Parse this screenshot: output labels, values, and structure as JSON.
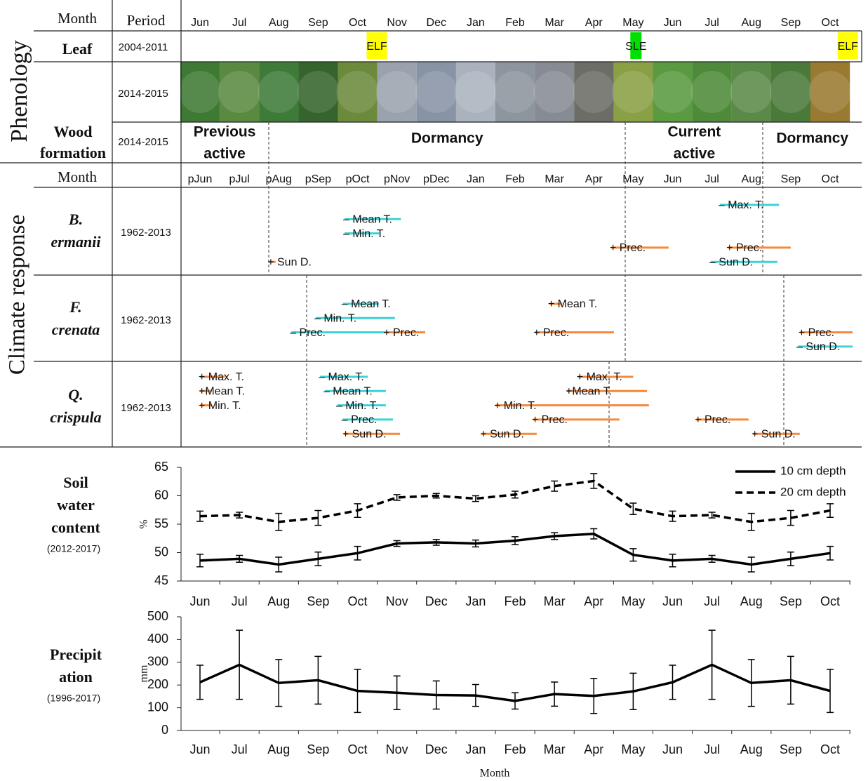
{
  "panel": {
    "header": {
      "month_label": "Month",
      "period_label": "Period",
      "months": [
        "Jun",
        "Jul",
        "Aug",
        "Sep",
        "Oct",
        "Nov",
        "Dec",
        "Jan",
        "Feb",
        "Mar",
        "Apr",
        "May",
        "Jun",
        "Jul",
        "Aug",
        "Sep",
        "Oct"
      ]
    },
    "phenology": {
      "label": "Phenology",
      "leaf": {
        "label": "Leaf",
        "period": "2004-2011",
        "events": [
          {
            "label": "ELF",
            "position": 4.49,
            "color": "#ffff00"
          },
          {
            "label": "SLE",
            "position": 11.07,
            "color": "#00e000"
          },
          {
            "label": "ELF",
            "position": 16.45,
            "color": "#ffff00"
          }
        ]
      },
      "photos": {
        "period": "2014-2015"
      }
    },
    "wood": {
      "label_lines": [
        "Wood",
        "formation"
      ],
      "period": "2014-2015",
      "phases": [
        {
          "lines": [
            "Previous",
            "active"
          ],
          "from": -0.5,
          "to": 1.75
        },
        {
          "lines": [
            "Dormancy"
          ],
          "from": 1.75,
          "to": 10.8
        },
        {
          "lines": [
            "Current",
            "active"
          ],
          "from": 10.8,
          "to": 14.3
        },
        {
          "lines": [
            "Dormancy"
          ],
          "from": 14.3,
          "to": 16.8
        }
      ]
    },
    "climate": {
      "label": "Climate response",
      "month_label": "Month",
      "months": [
        "pJun",
        "pJul",
        "pAug",
        "pSep",
        "pOct",
        "pNov",
        "pDec",
        "Jan",
        "Feb",
        "Mar",
        "Apr",
        "May",
        "Jun",
        "Jul",
        "Aug",
        "Sep",
        "Oct"
      ],
      "species": [
        {
          "name_lines": [
            "B.",
            "ermanii"
          ],
          "period": "1962-2013",
          "bars": [
            {
              "label": "– Max. T.",
              "color": "#3dd2d8",
              "row": 0,
              "from": 13.2,
              "to": 14.7
            },
            {
              "label": "– Mean T.",
              "color": "#3dd2d8",
              "row": 1,
              "from": 3.67,
              "to": 5.1
            },
            {
              "label": "– Min. T.",
              "color": "#3dd2d8",
              "row": 2,
              "from": 3.67,
              "to": 4.55
            },
            {
              "label": "+ Prec.",
              "color": "#f58a3c",
              "row": 3,
              "from": 10.44,
              "to": 11.9
            },
            {
              "label": "+ Prec.",
              "color": "#f58a3c",
              "row": 3,
              "from": 13.4,
              "to": 15.0
            },
            {
              "label": "– Sun D.",
              "color": "#3dd2d8",
              "row": 4,
              "from": 12.97,
              "to": 14.66
            },
            {
              "label": "+ Sun D.",
              "color": "#f58a3c",
              "row": 4,
              "from": 1.75,
              "to": 1.92
            }
          ]
        },
        {
          "name_lines": [
            "F.",
            "crenata"
          ],
          "period": "1962-2013",
          "bars": [
            {
              "label": "– Mean T.",
              "color": "#3dd2d8",
              "row": 0,
              "from": 3.63,
              "to": 4.54
            },
            {
              "label": "+ Mean T.",
              "color": "#f58a3c",
              "row": 0,
              "from": 8.87,
              "to": 9.2
            },
            {
              "label": "– Min. T.",
              "color": "#3dd2d8",
              "row": 1,
              "from": 2.94,
              "to": 4.95
            },
            {
              "label": "– Prec.",
              "color": "#3dd2d8",
              "row": 2,
              "from": 2.32,
              "to": 4.69
            },
            {
              "label": "+ Prec.",
              "color": "#f58a3c",
              "row": 2,
              "from": 4.69,
              "to": 5.72
            },
            {
              "label": "+ Prec.",
              "color": "#f58a3c",
              "row": 2,
              "from": 8.5,
              "to": 10.51
            },
            {
              "label": "+ Prec.",
              "color": "#f58a3c",
              "row": 2,
              "from": 15.23,
              "to": 16.57
            },
            {
              "label": "– Sun D.",
              "color": "#3dd2d8",
              "row": 3,
              "from": 15.18,
              "to": 16.57
            }
          ]
        },
        {
          "name_lines": [
            "Q.",
            "crispula"
          ],
          "period": "1962-2013",
          "bars": [
            {
              "label": "+ Max. T.",
              "color": "#f58a3c",
              "row": 0,
              "from": 0.0,
              "to": 0.63
            },
            {
              "label": "+Mean T.",
              "color": "#f58a3c",
              "row": 1,
              "from": 0.0,
              "to": 0.3
            },
            {
              "label": "+ Min. T.",
              "color": "#f58a3c",
              "row": 2,
              "from": 0.0,
              "to": 0.3
            },
            {
              "label": "– Max. T.",
              "color": "#3dd2d8",
              "row": 0,
              "from": 3.05,
              "to": 4.26
            },
            {
              "label": "– Mean T.",
              "color": "#3dd2d8",
              "row": 1,
              "from": 3.17,
              "to": 4.72
            },
            {
              "label": "– Min. T.",
              "color": "#3dd2d8",
              "row": 2,
              "from": 3.49,
              "to": 4.72
            },
            {
              "label": "– Prec.",
              "color": "#3dd2d8",
              "row": 3,
              "from": 3.63,
              "to": 4.9
            },
            {
              "label": "+ Sun D.",
              "color": "#f58a3c",
              "row": 4,
              "from": 3.65,
              "to": 5.08
            },
            {
              "label": "+ Sun D.",
              "color": "#f58a3c",
              "row": 4,
              "from": 7.15,
              "to": 8.55
            },
            {
              "label": "+ Max. T.",
              "color": "#f58a3c",
              "row": 0,
              "from": 9.6,
              "to": 11.0
            },
            {
              "label": "+Mean T.",
              "color": "#f58a3c",
              "row": 1,
              "from": 9.32,
              "to": 11.35
            },
            {
              "label": "+ Min. T.",
              "color": "#f58a3c",
              "row": 2,
              "from": 7.5,
              "to": 11.4
            },
            {
              "label": "+ Prec.",
              "color": "#f58a3c",
              "row": 3,
              "from": 8.46,
              "to": 10.65
            },
            {
              "label": "+ Prec.",
              "color": "#f58a3c",
              "row": 3,
              "from": 12.6,
              "to": 13.93
            },
            {
              "label": "+ Sun D.",
              "color": "#f58a3c",
              "row": 4,
              "from": 14.04,
              "to": 15.23
            }
          ]
        }
      ]
    }
  },
  "chart_data": [
    {
      "type": "line",
      "title_lines": [
        "Soil",
        "water",
        "content"
      ],
      "subtitle": "(2012-2017)",
      "ylabel": "%",
      "categories": [
        "Jun",
        "Jul",
        "Aug",
        "Sep",
        "Oct",
        "Nov",
        "Dec",
        "Jan",
        "Feb",
        "Mar",
        "Apr",
        "May",
        "Jun",
        "Jul",
        "Aug",
        "Sep",
        "Oct"
      ],
      "ylim": [
        45,
        65
      ],
      "yticks": [
        45,
        50,
        55,
        60,
        65
      ],
      "legend": "upper right",
      "series": [
        {
          "name": "10 cm depth",
          "color": "#000000",
          "dashed": false,
          "values": [
            48.6,
            48.9,
            47.9,
            48.9,
            49.9,
            51.6,
            51.8,
            51.6,
            52.1,
            52.9,
            53.3,
            49.6,
            48.6,
            48.9,
            47.9,
            48.9,
            49.9
          ],
          "errors": [
            1.1,
            0.6,
            1.3,
            1.2,
            1.2,
            0.5,
            0.5,
            0.6,
            0.7,
            0.6,
            0.9,
            1.1,
            1.1,
            0.6,
            1.3,
            1.2,
            1.2
          ]
        },
        {
          "name": "20 cm depth",
          "color": "#000000",
          "dashed": true,
          "values": [
            56.4,
            56.6,
            55.4,
            56.1,
            57.4,
            59.7,
            60.0,
            59.5,
            60.2,
            61.7,
            62.6,
            57.7,
            56.4,
            56.6,
            55.4,
            56.1,
            57.4
          ],
          "errors": [
            0.9,
            0.5,
            1.5,
            1.3,
            1.2,
            0.5,
            0.4,
            0.5,
            0.6,
            0.9,
            1.3,
            1.0,
            0.9,
            0.5,
            1.5,
            1.3,
            1.2
          ]
        }
      ]
    },
    {
      "type": "line",
      "title_lines": [
        "Precipit",
        "ation"
      ],
      "subtitle": "(1996-2017)",
      "ylabel": "mm",
      "xlabel": "Month",
      "categories": [
        "Jun",
        "Jul",
        "Aug",
        "Sep",
        "Oct",
        "Nov",
        "Dec",
        "Jan",
        "Feb",
        "Mar",
        "Apr",
        "May",
        "Jun",
        "Jul",
        "Aug",
        "Sep",
        "Oct"
      ],
      "ylim": [
        0,
        500
      ],
      "yticks": [
        0,
        100,
        200,
        300,
        400,
        500
      ],
      "series": [
        {
          "color": "#000000",
          "dashed": false,
          "values": [
            212,
            289,
            209,
            221,
            174,
            166,
            156,
            154,
            130,
            160,
            152,
            172,
            212,
            289,
            209,
            221,
            174
          ],
          "errors": [
            75,
            152,
            103,
            105,
            95,
            74,
            62,
            48,
            36,
            53,
            77,
            80,
            75,
            152,
            103,
            105,
            95
          ]
        }
      ]
    }
  ]
}
